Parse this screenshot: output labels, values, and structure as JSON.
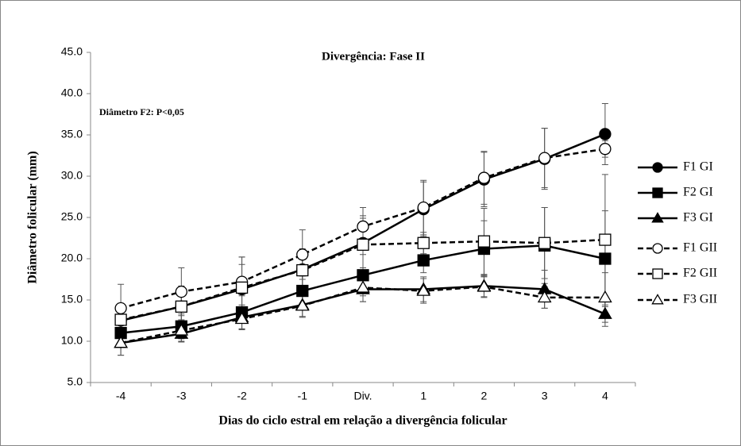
{
  "chart_data": {
    "type": "line",
    "title": "Divergência: Fase II",
    "annotation": "Diâmetro F2: P<0,05",
    "xlabel": "Dias do ciclo estral em relação a divergência folicular",
    "ylabel": "Diâmetro folicular (mm)",
    "categories": [
      "-4",
      "-3",
      "-2",
      "-1",
      "Div.",
      "1",
      "2",
      "3",
      "4"
    ],
    "ylim": [
      5,
      45
    ],
    "yticks": [
      {
        "value": 5,
        "label": "5.0"
      },
      {
        "value": 10,
        "label": "10.0"
      },
      {
        "value": 15,
        "label": "15.0"
      },
      {
        "value": 20,
        "label": "20.0"
      },
      {
        "value": 25,
        "label": "25.0"
      },
      {
        "value": 30,
        "label": "30.0"
      },
      {
        "value": 35,
        "label": "35.0"
      },
      {
        "value": 40,
        "label": "40.0"
      },
      {
        "value": 45,
        "label": "45.0"
      }
    ],
    "legend": "right",
    "series": [
      {
        "name": "F1 GI",
        "color": "#000000",
        "dashed": false,
        "marker": "circle",
        "filled": true,
        "values": [
          12.5,
          14.2,
          16.3,
          18.7,
          21.9,
          26.0,
          29.6,
          32.1,
          35.1
        ],
        "errors": [
          2.0,
          2.5,
          3.0,
          2.5,
          3.0,
          3.3,
          3.3,
          3.7,
          3.7
        ]
      },
      {
        "name": "F2 GI",
        "color": "#000000",
        "dashed": false,
        "marker": "square",
        "filled": true,
        "values": [
          11.0,
          11.8,
          13.5,
          16.1,
          18.0,
          19.8,
          21.2,
          21.6,
          20.0
        ],
        "errors": [
          1.5,
          1.5,
          2.0,
          1.8,
          2.5,
          1.5,
          3.4,
          4.6,
          5.8
        ]
      },
      {
        "name": "F3 GI",
        "color": "#000000",
        "dashed": false,
        "marker": "triangle",
        "filled": true,
        "values": [
          9.8,
          10.9,
          12.9,
          14.4,
          16.3,
          16.3,
          16.7,
          16.3,
          13.3
        ],
        "errors": [
          1.5,
          1.0,
          1.5,
          1.5,
          1.5,
          1.5,
          1.3,
          2.3,
          1.5
        ]
      },
      {
        "name": "F1 GII",
        "color": "#000000",
        "dashed": true,
        "marker": "circle",
        "filled": false,
        "values": [
          14.0,
          16.0,
          17.2,
          20.5,
          23.9,
          26.2,
          29.8,
          32.2,
          33.3
        ],
        "errors": [
          2.9,
          2.9,
          3.0,
          3.0,
          2.3,
          3.3,
          3.2,
          3.6,
          1.0
        ]
      },
      {
        "name": "F2 GII",
        "color": "#000000",
        "dashed": true,
        "marker": "square",
        "filled": false,
        "values": [
          12.6,
          14.2,
          16.5,
          18.6,
          21.7,
          21.9,
          22.1,
          21.9,
          22.3
        ],
        "errors": [
          2.0,
          2.0,
          3.7,
          2.0,
          3.5,
          1.3,
          4.0,
          4.3,
          7.9
        ]
      },
      {
        "name": "F3 GII",
        "color": "#000000",
        "dashed": true,
        "marker": "triangle",
        "filled": false,
        "values": [
          9.8,
          11.3,
          12.7,
          14.3,
          16.5,
          16.1,
          16.6,
          15.3,
          15.3
        ],
        "errors": [
          1.5,
          1.3,
          1.2,
          1.3,
          1.7,
          1.5,
          1.3,
          1.3,
          3.0
        ]
      }
    ]
  }
}
